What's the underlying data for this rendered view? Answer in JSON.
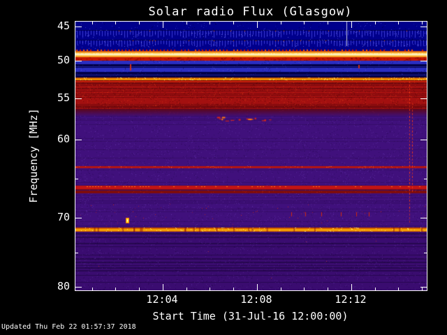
{
  "chart_data": {
    "type": "heatmap",
    "title": "Solar radio Flux (Glasgow)",
    "xlabel": "Start Time (31-Jul-16 12:00:00)",
    "ylabel": "Frequency [MHz]",
    "y_scale": "irregular",
    "y_ticks": [
      45,
      50,
      55,
      60,
      70,
      80
    ],
    "y_minor_ticks": [
      65,
      75
    ],
    "y_anchor_freqs": [
      45,
      50,
      55,
      60,
      70,
      80
    ],
    "y_range": [
      44.3,
      80.6
    ],
    "x_axis": {
      "t_start_min": 0.3,
      "t_end_min": 15.2,
      "major_ticks": [
        {
          "label": "12:04",
          "t": 4
        },
        {
          "label": "12:08",
          "t": 8
        },
        {
          "label": "12:12",
          "t": 12
        }
      ],
      "minor_tick_every_min": 1
    },
    "palette": {
      "background": "#000000",
      "frame": "#ffffff",
      "text": "#ffffff",
      "navy": "#00008c",
      "navy_bright": "#3b3bd6",
      "blue": "#2a2ec2",
      "dark_blue": "#000048",
      "red": "#c81400",
      "orange": "#ff8800",
      "bright_band": "#ffffd9",
      "purple": "#40107c"
    },
    "bands": [
      {
        "f0": 44.25,
        "f1": 45.5,
        "style": "navy"
      },
      {
        "f0": 45.5,
        "f1": 46.6,
        "style": "comb"
      },
      {
        "f0": 46.6,
        "f1": 46.95,
        "style": "navy"
      },
      {
        "f0": 46.95,
        "f1": 48.0,
        "style": "comb"
      },
      {
        "f0": 48.0,
        "f1": 48.35,
        "style": "navy"
      },
      {
        "f0": 48.35,
        "f1": 48.6,
        "style": "red_dots"
      },
      {
        "f0": 48.6,
        "f1": 49.45,
        "style": "bright"
      },
      {
        "f0": 49.45,
        "f1": 49.95,
        "style": "red"
      },
      {
        "f0": 49.95,
        "f1": 50.45,
        "style": "blue"
      },
      {
        "f0": 50.45,
        "f1": 50.95,
        "style": "darkblue"
      },
      {
        "f0": 50.95,
        "f1": 51.5,
        "style": "blue"
      },
      {
        "f0": 51.5,
        "f1": 52.25,
        "style": "darkblue"
      },
      {
        "f0": 52.25,
        "f1": 52.6,
        "style": "orangeline"
      },
      {
        "f0": 52.6,
        "f1": 56.3,
        "style": "redtex"
      },
      {
        "f0": 56.3,
        "f1": 57.1,
        "style": "fade"
      },
      {
        "f0": 57.1,
        "f1": 63.35,
        "style": "purple"
      },
      {
        "f0": 63.35,
        "f1": 63.65,
        "style": "redline"
      },
      {
        "f0": 63.65,
        "f1": 65.85,
        "style": "purple"
      },
      {
        "f0": 65.85,
        "f1": 66.4,
        "style": "redband"
      },
      {
        "f0": 66.4,
        "f1": 66.55,
        "style": "purple"
      },
      {
        "f0": 66.55,
        "f1": 66.85,
        "style": "darkredline"
      },
      {
        "f0": 66.85,
        "f1": 71.45,
        "style": "purple_specks"
      },
      {
        "f0": 71.45,
        "f1": 72.0,
        "style": "orangeband"
      },
      {
        "f0": 72.0,
        "f1": 80.6,
        "style": "striated"
      }
    ],
    "features": [
      {
        "type": "white_streak",
        "x": 0.772,
        "f0": 44.3,
        "f1": 47.9
      },
      {
        "type": "red_tick",
        "x": 0.155,
        "f0": 50.5,
        "f1": 51.3
      },
      {
        "type": "red_tick",
        "x": 0.805,
        "f0": 50.6,
        "f1": 51.1
      },
      {
        "type": "red_dashes",
        "f": 57.45,
        "x0": 0.39,
        "x1": 0.56,
        "count": 16
      },
      {
        "type": "yellow_blob",
        "x": 0.145,
        "f": 70.1
      },
      {
        "type": "vdashed",
        "x": 0.95,
        "f0": 52.7,
        "f1": 70.6
      },
      {
        "type": "vdashed",
        "x": 0.958,
        "f0": 55.5,
        "f1": 66.5
      },
      {
        "type": "vticks",
        "f0": 69.3,
        "f1": 69.8,
        "xs": [
          0.615,
          0.655,
          0.7,
          0.755,
          0.8,
          0.835
        ]
      }
    ]
  },
  "footer": {
    "updated": "Updated Thu Feb 22 01:57:37 2018"
  }
}
